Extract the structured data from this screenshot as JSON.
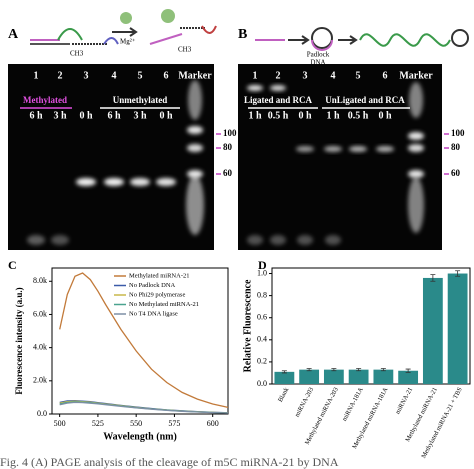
{
  "gel_a": {
    "label": "A",
    "schematic": {
      "ch3_left": "CH3",
      "mg": "Mg²⁺",
      "ch3_right": "CH3"
    },
    "lanes": [
      "1",
      "2",
      "3",
      "4",
      "5",
      "6",
      "Marker"
    ],
    "groups": [
      "Methylated",
      "Unmethylated"
    ],
    "times": [
      "6 h",
      "3 h",
      "0 h",
      "6 h",
      "3 h",
      "0 h"
    ],
    "markers": [
      "100",
      "80",
      "60"
    ]
  },
  "gel_b": {
    "label": "B",
    "schematic": {
      "padlock": [
        "Padlock",
        "DNA"
      ]
    },
    "lanes": [
      "1",
      "2",
      "3",
      "4",
      "5",
      "6",
      "Marker"
    ],
    "groups": [
      "Ligated and RCA",
      "UnLigated and RCA"
    ],
    "times": [
      "1 h",
      "0.5 h",
      "0 h",
      "1 h",
      "0.5 h",
      "0 h"
    ],
    "markers": [
      "100",
      "80",
      "60"
    ]
  },
  "chart_data": [
    {
      "type": "line",
      "panel": "C",
      "x_label": "Wavelength (nm)",
      "y_label": "Fluorescence intensity (a.u.)",
      "x": [
        500,
        505,
        510,
        515,
        520,
        525,
        530,
        540,
        550,
        560,
        570,
        580,
        590,
        600,
        610
      ],
      "xlim": [
        495,
        610
      ],
      "xticks": [
        500,
        525,
        550,
        575,
        600
      ],
      "ylim": [
        0,
        8800
      ],
      "yticks": [
        {
          "value": 0,
          "label": "0.0"
        },
        {
          "value": 2000,
          "label": "2.0k"
        },
        {
          "value": 4000,
          "label": "4.0k"
        },
        {
          "value": 6000,
          "label": "6.0k"
        },
        {
          "value": 8000,
          "label": "8.0k"
        }
      ],
      "series": [
        {
          "name": "Methylated miRNA-21",
          "color": "#c27a3a",
          "values": [
            5100,
            7200,
            8300,
            8500,
            8100,
            7400,
            6600,
            5100,
            3800,
            2700,
            1900,
            1300,
            900,
            600,
            400
          ]
        },
        {
          "name": "No Padlock DNA",
          "color": "#3b5ba8",
          "values": [
            700,
            790,
            810,
            780,
            740,
            690,
            630,
            520,
            420,
            330,
            250,
            190,
            140,
            100,
            70
          ]
        },
        {
          "name": "No Phi29 polymerase",
          "color": "#c9b84a",
          "values": [
            650,
            740,
            770,
            750,
            710,
            660,
            600,
            500,
            400,
            310,
            240,
            180,
            130,
            95,
            65
          ]
        },
        {
          "name": "No Methylated miRNA-21",
          "color": "#4aa38f",
          "values": [
            600,
            700,
            730,
            710,
            680,
            630,
            580,
            480,
            380,
            300,
            230,
            170,
            125,
            90,
            60
          ]
        },
        {
          "name": "No T4 DNA ligase",
          "color": "#7d8fa6",
          "values": [
            560,
            660,
            700,
            690,
            650,
            610,
            560,
            460,
            370,
            290,
            220,
            165,
            120,
            85,
            60
          ]
        }
      ]
    },
    {
      "type": "bar",
      "panel": "D",
      "y_label": "Relative Fluorescence",
      "categories": [
        "Blank",
        "miRNA-203",
        "Methylated miRNA-203",
        "miRNA-181A",
        "Methylated miRNA-181A",
        "miRNA-21",
        "Methylated miRNA-21",
        "Methylated miRNA-21 + TBS"
      ],
      "values": [
        0.11,
        0.13,
        0.13,
        0.13,
        0.13,
        0.12,
        0.96,
        1.0
      ],
      "errors": [
        0.01,
        0.01,
        0.01,
        0.01,
        0.01,
        0.015,
        0.03,
        0.025
      ],
      "color": "#2a8a8a",
      "ylim": [
        0,
        1.05
      ],
      "yticks": [
        {
          "value": 0,
          "label": "0.0"
        },
        {
          "value": 0.2,
          "label": "0.2"
        },
        {
          "value": 0.4,
          "label": "0.4"
        },
        {
          "value": 0.6,
          "label": "0.6"
        },
        {
          "value": 0.8,
          "label": "0.8"
        },
        {
          "value": 1.0,
          "label": "1.0"
        }
      ]
    }
  ],
  "caption": "Fig. 4   (A) PAGE analysis of the cleavage of m5C miRNA-21 by DNA"
}
